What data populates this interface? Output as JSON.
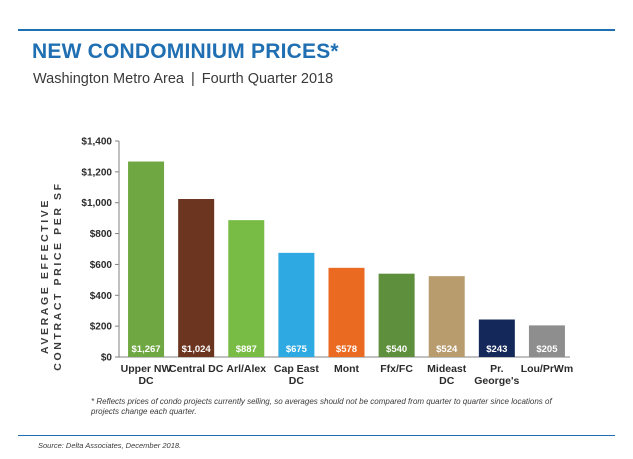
{
  "header": {
    "title": "NEW CONDOMINIUM PRICES*",
    "subtitle_left": "Washington Metro Area",
    "subtitle_sep": "|",
    "subtitle_right": "Fourth Quarter 2018",
    "accent_color": "#1f6fb2"
  },
  "footnote": "* Reflects prices of condo projects currently selling, so averages should not be compared from quarter to quarter since locations of projects change each quarter.",
  "source": "Source: Delta Associates, December 2018.",
  "chart_data": {
    "type": "bar",
    "ylabel": "AVERAGE EFFECTIVE CONTRACT PRICE PER SF",
    "ylim": [
      0,
      1400
    ],
    "y_ticks": [
      0,
      200,
      400,
      600,
      800,
      1000,
      1200,
      1400
    ],
    "y_tick_labels": [
      "$0",
      "$200",
      "$400",
      "$600",
      "$800",
      "$1,000",
      "$1,200",
      "$1,400"
    ],
    "grid": false,
    "legend": "none",
    "categories": [
      "Upper NW DC",
      "Central DC",
      "Arl/Alex",
      "Cap East DC",
      "Mont",
      "Ffx/FC",
      "Mideast DC",
      "Pr. George's",
      "Lou/PrWm"
    ],
    "category_lines": [
      [
        "Upper NW",
        "DC"
      ],
      [
        "Central DC"
      ],
      [
        "Arl/Alex"
      ],
      [
        "Cap East",
        "DC"
      ],
      [
        "Mont"
      ],
      [
        "Ffx/FC"
      ],
      [
        "Mideast",
        "DC"
      ],
      [
        "Pr.",
        "George's"
      ],
      [
        "Lou/PrWm"
      ]
    ],
    "values": [
      1267,
      1024,
      887,
      675,
      578,
      540,
      524,
      243,
      205
    ],
    "data_labels": [
      "$1,267",
      "$1,024",
      "$887",
      "$675",
      "$578",
      "$540",
      "$524",
      "$243",
      "$205"
    ],
    "colors": [
      "#6fa843",
      "#6b3520",
      "#79bc45",
      "#2ea9e1",
      "#ea6a22",
      "#5e8f3c",
      "#b89c6e",
      "#14285a",
      "#8e8e8e"
    ]
  }
}
